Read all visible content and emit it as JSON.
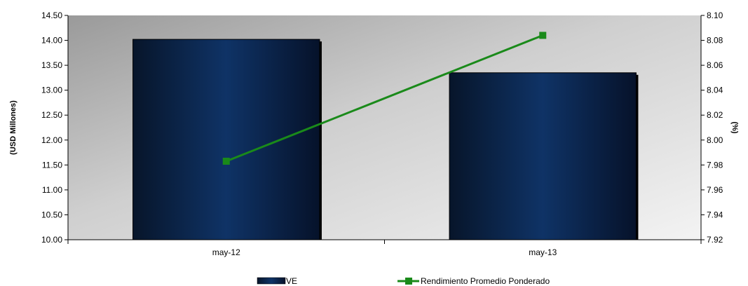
{
  "chart_data": {
    "type": "bar",
    "categories": [
      "may-12",
      "may-13"
    ],
    "series": [
      {
        "name": "VE",
        "type": "bar",
        "axis": "left",
        "values": [
          14.02,
          13.35
        ],
        "color": "#0d2b52"
      },
      {
        "name": "Rendimiento Promedio Ponderado",
        "type": "line",
        "axis": "right",
        "values": [
          7.983,
          8.084
        ],
        "color": "#1a8a1a"
      }
    ],
    "ylabel": "(USD Millones)",
    "y2label": "(%)",
    "ylim": [
      10.0,
      14.5
    ],
    "y2lim": [
      7.92,
      8.1
    ],
    "yticks": [
      "10.00",
      "10.50",
      "11.00",
      "11.50",
      "12.00",
      "12.50",
      "13.00",
      "13.50",
      "14.00",
      "14.50"
    ],
    "y2ticks": [
      "7.92",
      "7.94",
      "7.96",
      "7.98",
      "8.00",
      "8.02",
      "8.04",
      "8.06",
      "8.08",
      "8.10"
    ],
    "grid": false,
    "legend_position": "bottom"
  }
}
